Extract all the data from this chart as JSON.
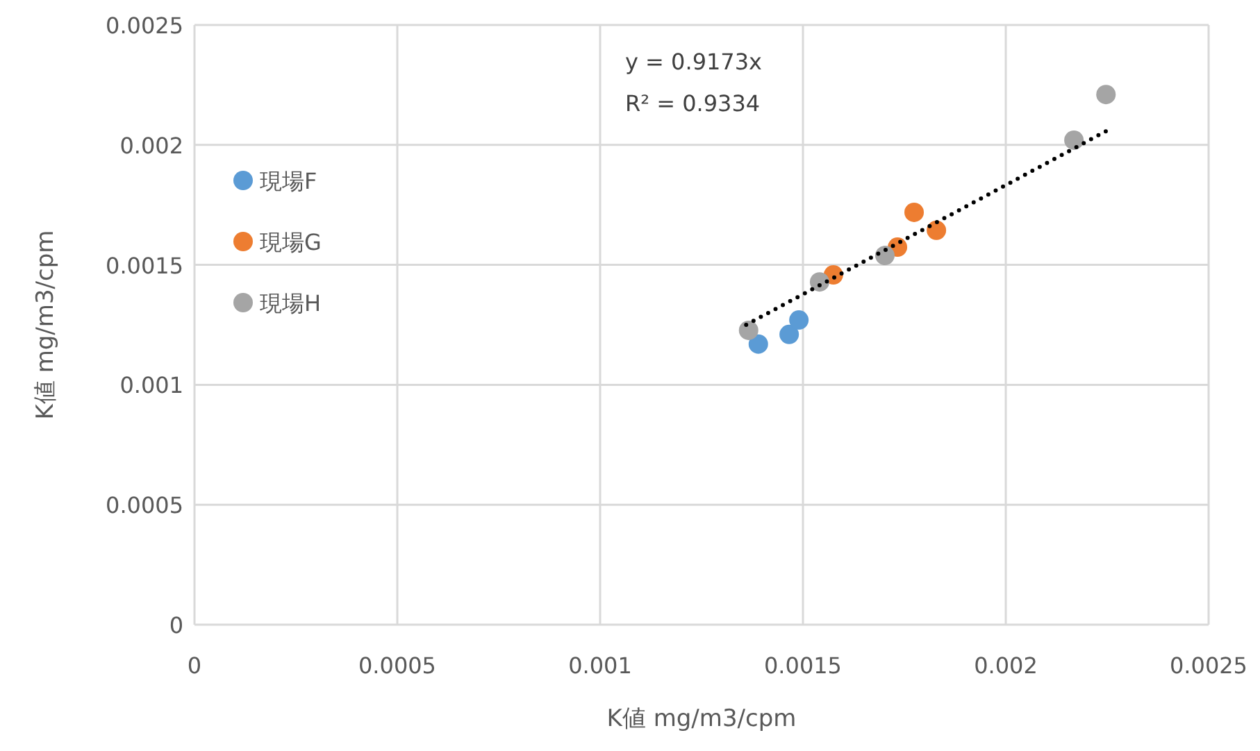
{
  "chart_data": {
    "type": "scatter",
    "xlabel": "K値   mg/m3/cpm",
    "ylabel": "K値   mg/m3/cpm",
    "xlim": [
      0,
      0.0025
    ],
    "xticks": [
      0,
      0.0005,
      0.001,
      0.0015,
      0.002,
      0.0025
    ],
    "ylim": [
      0,
      0.0025
    ],
    "yticks": [
      0,
      0.0005,
      0.001,
      0.0015,
      0.002,
      0.0025
    ],
    "grid": true,
    "legend": "top left",
    "marker": "circle",
    "annotations": [
      "y = 0.9173x",
      "R² = 0.9334"
    ],
    "series": [
      {
        "name": "現場F",
        "color": "#5b9bd5",
        "x": [
          0.00139,
          0.001466,
          0.00149
        ],
        "values": [
          0.00117,
          0.00121,
          0.00127
        ]
      },
      {
        "name": "現場G",
        "color": "#ed7d31",
        "x": [
          0.001575,
          0.001733,
          0.001774,
          0.001829
        ],
        "values": [
          0.001458,
          0.001574,
          0.001719,
          0.001644
        ]
      },
      {
        "name": "現場H",
        "color": "#a5a5a5",
        "x": [
          0.001366,
          0.001541,
          0.001702,
          0.002168,
          0.002247
        ],
        "values": [
          0.001227,
          0.001429,
          0.001539,
          0.00202,
          0.00221
        ]
      },
      {
        "type": "line",
        "color": "#000000",
        "line_style": "dotted",
        "marker": "none",
        "x": [
          0.00136,
          0.00225
        ],
        "values": [
          0.00125,
          0.00206
        ]
      }
    ]
  }
}
